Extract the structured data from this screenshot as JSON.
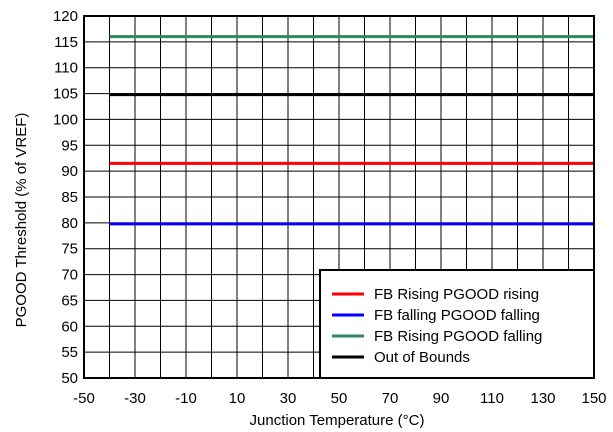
{
  "chart_data": {
    "type": "line",
    "title": "",
    "xlabel": "Junction Temperature (°C)",
    "ylabel": "PGOOD Threshold (% of VREF)",
    "xlim": [
      -50,
      150
    ],
    "ylim": [
      50,
      120
    ],
    "x_ticks": [
      -50,
      -30,
      -10,
      10,
      30,
      50,
      70,
      90,
      110,
      130,
      150
    ],
    "y_ticks": [
      50,
      55,
      60,
      65,
      70,
      75,
      80,
      85,
      90,
      95,
      100,
      105,
      110,
      115,
      120
    ],
    "x_grid_step": 10,
    "y_grid_step": 5,
    "grid": true,
    "legend_position": "bottom-right",
    "series": [
      {
        "name": "FB Rising PGOOD rising",
        "color": "#ff0000",
        "x": [
          -40,
          150
        ],
        "y": [
          91.5,
          91.5
        ]
      },
      {
        "name": "FB falling PGOOD falling",
        "color": "#0000ff",
        "x": [
          -40,
          150
        ],
        "y": [
          79.8,
          79.8
        ]
      },
      {
        "name": "FB Rising PGOOD falling",
        "color": "#2e8b57",
        "x": [
          -40,
          150
        ],
        "y": [
          116,
          116
        ]
      },
      {
        "name": "Out of Bounds",
        "color": "#000000",
        "x": [
          -40,
          150
        ],
        "y": [
          104.8,
          104.8
        ]
      }
    ]
  }
}
